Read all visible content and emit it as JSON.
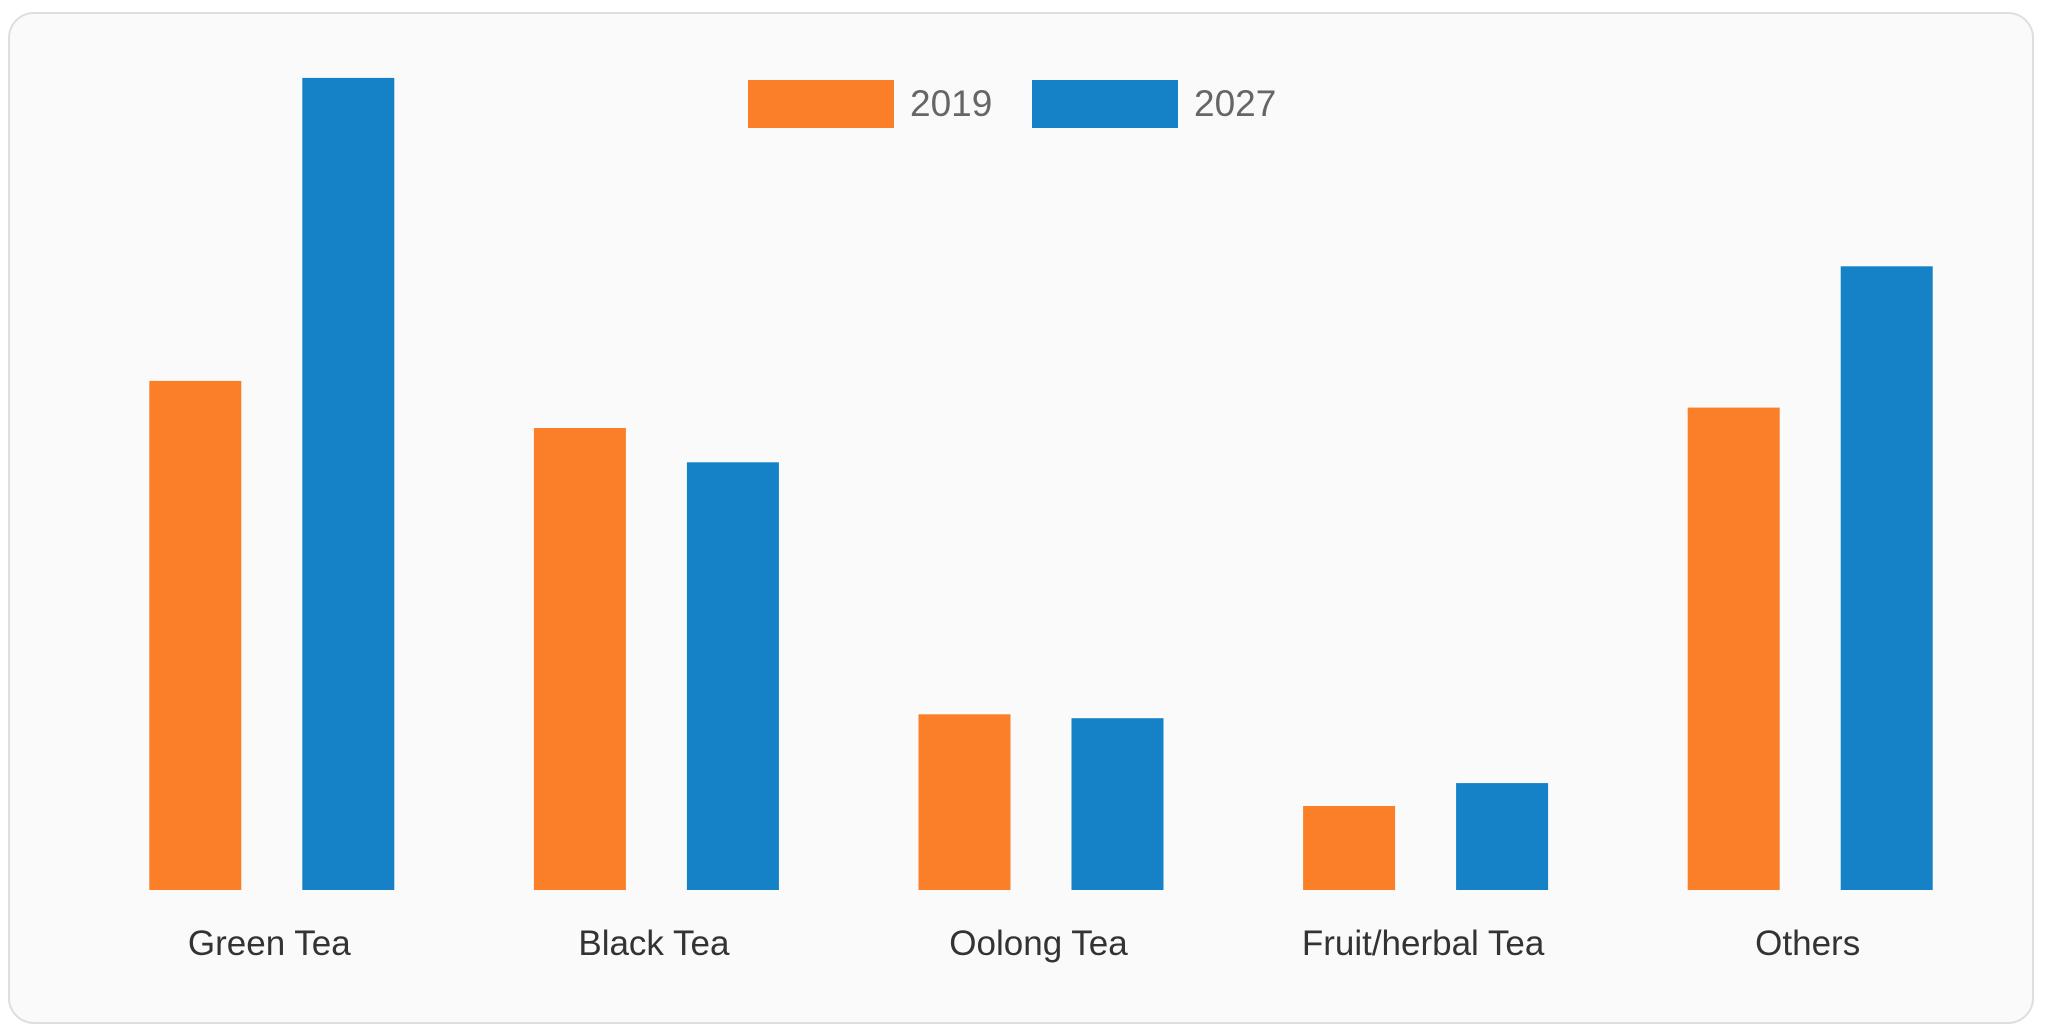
{
  "chart_data": {
    "type": "bar",
    "categories": [
      "Green Tea",
      "Black Tea",
      "Oolong Tea",
      "Fruit/herbal Tea",
      "Others"
    ],
    "series": [
      {
        "name": "2019",
        "color": "#fb7e29",
        "values": [
          40,
          36.3,
          13.8,
          6.6,
          37.9
        ]
      },
      {
        "name": "2027",
        "color": "#1581c6",
        "values": [
          63.8,
          33.6,
          13.5,
          8.4,
          49
        ]
      }
    ],
    "ylim": [
      0,
      70
    ],
    "grid": false,
    "legend_position": "top-center",
    "xlabel": "",
    "ylabel": ""
  }
}
